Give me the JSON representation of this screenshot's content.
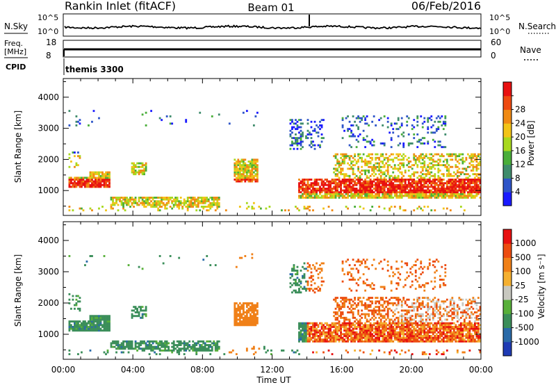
{
  "header": {
    "title": "Rankin Inlet (fitACF)",
    "beam": "Beam 01",
    "date": "06/Feb/2016"
  },
  "top_panel": {
    "left_label": "N.Sky",
    "right_label": "N.Search",
    "left_ticks": [
      "10^5",
      "10^0"
    ],
    "right_ticks": [
      "10^5",
      "10^0"
    ]
  },
  "freq_panel": {
    "left_label_1": "Freq.",
    "left_label_2": "[MHz]",
    "right_label": "Nave",
    "left_ticks": [
      "18",
      "8"
    ],
    "right_ticks": [
      "60",
      "0"
    ]
  },
  "cpid_panel": {
    "label": "CPID",
    "text": "themis 3300"
  },
  "chart_data": [
    {
      "type": "heatmap",
      "name": "power",
      "ylabel": "Slant Range [km]",
      "ylim": [
        200,
        4600
      ],
      "yticks": [
        "1000",
        "2000",
        "3000",
        "4000"
      ],
      "colorbar_label": "Power [dB]",
      "colorbar_ticks": [
        "4",
        "8",
        "12",
        "16",
        "20",
        "24",
        "28"
      ],
      "colors": [
        "#1a1aff",
        "#2e55c8",
        "#3f8c6c",
        "#4aae3a",
        "#a8d81e",
        "#f2c418",
        "#f08a14",
        "#ee4a10",
        "#e81010"
      ],
      "xlim": [
        0,
        24
      ]
    },
    {
      "type": "heatmap",
      "name": "velocity",
      "ylabel": "Slant Range [km]",
      "ylim": [
        200,
        4600
      ],
      "yticks": [
        "1000",
        "2000",
        "3000",
        "4000"
      ],
      "colorbar_label": "Velocity [m s⁻¹]",
      "colorbar_ticks": [
        "1000",
        "500",
        "100",
        "25",
        "-25",
        "-100",
        "-500",
        "-1000"
      ],
      "colors": [
        "#1f3bb4",
        "#2a6aa8",
        "#3b8e5a",
        "#58b03a",
        "#c8c8c0",
        "#f5b030",
        "#f08018",
        "#ec4c10",
        "#e81010"
      ],
      "xlim": [
        0,
        24
      ]
    }
  ],
  "x_axis": {
    "ticks": [
      "00:00",
      "04:00",
      "08:00",
      "12:00",
      "16:00",
      "20:00",
      "00:00"
    ],
    "label": "Time UT"
  },
  "colors": {
    "white": "#ffffff",
    "black": "#000000"
  }
}
